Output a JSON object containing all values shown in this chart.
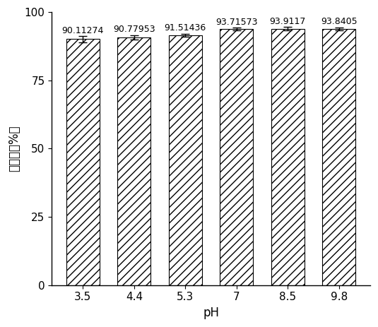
{
  "categories": [
    "3.5",
    "4.4",
    "5.3",
    "7",
    "8.5",
    "9.8"
  ],
  "values": [
    90.11274,
    90.77953,
    91.51436,
    93.71573,
    93.9117,
    93.8405
  ],
  "errors": [
    1.2,
    0.8,
    0.6,
    0.5,
    0.7,
    0.6
  ],
  "bar_color": "#ffffff",
  "hatch": "///",
  "edge_color": "#000000",
  "xlabel": "pH",
  "ylabel": "去除率（%）",
  "ylim": [
    0,
    100
  ],
  "yticks": [
    0,
    25,
    50,
    75,
    100
  ],
  "value_labels": [
    "90.11274",
    "90.77953",
    "91.51436",
    "93.71573",
    "93.9117",
    "93.8405"
  ],
  "bar_width": 0.65,
  "label_fontsize": 12,
  "tick_fontsize": 11,
  "value_fontsize": 9,
  "background_color": "#ffffff"
}
